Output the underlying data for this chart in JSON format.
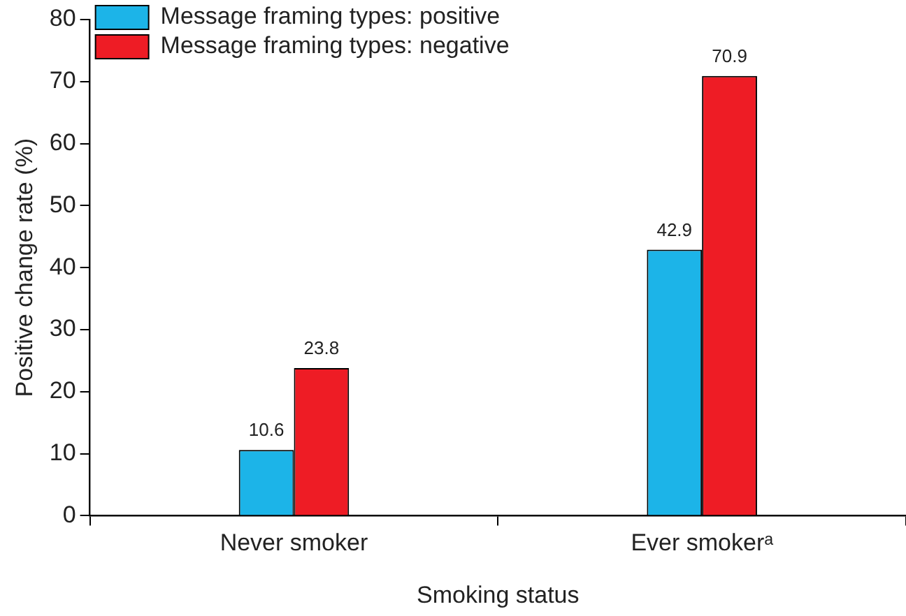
{
  "chart_data": {
    "type": "bar",
    "xlabel": "Smoking status",
    "ylabel": "Positive change rate (%)",
    "categories": [
      "Never smoker",
      "Ever smokerᵃ"
    ],
    "series": [
      {
        "name": "Message framing types: positive",
        "color": "#1cb4e8",
        "values": [
          10.6,
          42.9
        ]
      },
      {
        "name": "Message framing types: negative",
        "color": "#ee1c25",
        "values": [
          23.8,
          70.9
        ]
      }
    ],
    "ylim": [
      0,
      80
    ],
    "yticks": [
      0,
      10,
      20,
      30,
      40,
      50,
      60,
      70,
      80
    ],
    "grid": false,
    "legend": "top left",
    "data_labels": true
  }
}
